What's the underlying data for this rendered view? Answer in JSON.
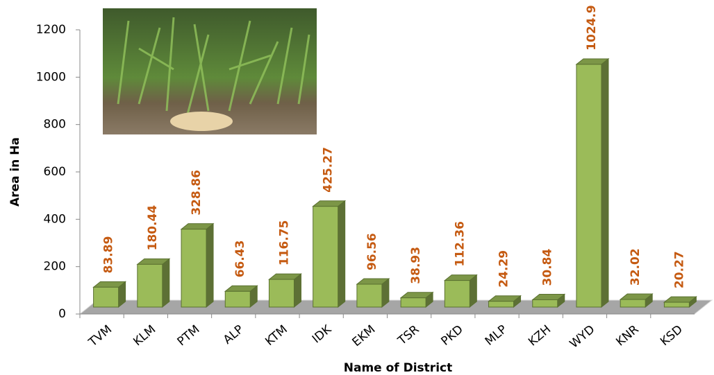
{
  "chart_data": {
    "type": "bar3d",
    "categories": [
      "TVM",
      "KLM",
      "PTM",
      "ALP",
      "KTM",
      "IDK",
      "EKM",
      "TSR",
      "PKD",
      "MLP",
      "KZH",
      "WYD",
      "KNR",
      "KSD"
    ],
    "values": [
      83.89,
      180.44,
      328.86,
      66.43,
      116.75,
      425.27,
      96.56,
      38.93,
      112.36,
      24.29,
      30.84,
      1024.9,
      32.02,
      20.27
    ],
    "color": "#9bbb59",
    "label_color": "#c55a11",
    "ylim": [
      0,
      1200
    ],
    "yticks": [
      0,
      200,
      400,
      600,
      800,
      1000,
      1200
    ],
    "x_label": "Name of District",
    "y_label": "Area in Ha"
  }
}
